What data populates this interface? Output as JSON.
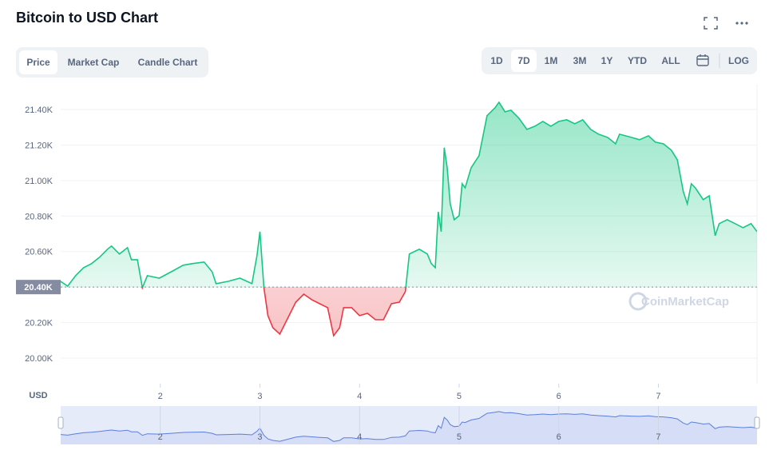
{
  "ui": {
    "title": "Bitcoin to USD Chart",
    "tabs": [
      "Price",
      "Market Cap",
      "Candle Chart"
    ],
    "ranges": [
      "1D",
      "7D",
      "1M",
      "3M",
      "1Y",
      "YTD",
      "ALL"
    ],
    "log": "LOG",
    "watermark": "CoinMarketCap"
  },
  "chart_data": {
    "type": "line",
    "y_label": "USD",
    "color": "#16c784",
    "down_color": "#ea3943",
    "baseline": {
      "value": 20400,
      "label": "20.40K"
    },
    "xlim": [
      1,
      7.99
    ],
    "xticks": [
      2,
      3,
      4,
      5,
      6,
      7
    ],
    "ylim": [
      19856,
      21544
    ],
    "yticks": [
      {
        "value": 20000,
        "label": "20.00K"
      },
      {
        "value": 20200,
        "label": "20.20K"
      },
      {
        "value": 20400,
        "label": "20.40K"
      },
      {
        "value": 20600,
        "label": "20.60K"
      },
      {
        "value": 20800,
        "label": "20.80K"
      },
      {
        "value": 21000,
        "label": "21.00K"
      },
      {
        "value": 21200,
        "label": "21.20K"
      },
      {
        "value": 21400,
        "label": "21.40K"
      }
    ],
    "grid": true,
    "x": [
      1.0,
      1.07,
      1.15,
      1.23,
      1.31,
      1.39,
      1.47,
      1.51,
      1.59,
      1.67,
      1.71,
      1.77,
      1.82,
      1.87,
      1.99,
      2.11,
      2.23,
      2.32,
      2.44,
      2.52,
      2.56,
      2.68,
      2.8,
      2.92,
      2.97,
      3.0,
      3.04,
      3.08,
      3.13,
      3.2,
      3.28,
      3.36,
      3.44,
      3.52,
      3.6,
      3.68,
      3.74,
      3.8,
      3.84,
      3.92,
      4.0,
      4.08,
      4.16,
      4.24,
      4.32,
      4.4,
      4.46,
      4.5,
      4.6,
      4.68,
      4.72,
      4.76,
      4.79,
      4.82,
      4.85,
      4.88,
      4.91,
      4.95,
      5.0,
      5.03,
      5.06,
      5.12,
      5.2,
      5.24,
      5.28,
      5.36,
      5.4,
      5.46,
      5.52,
      5.6,
      5.68,
      5.76,
      5.84,
      5.92,
      6.0,
      6.08,
      6.16,
      6.24,
      6.32,
      6.4,
      6.49,
      6.57,
      6.61,
      6.73,
      6.81,
      6.9,
      6.97,
      7.05,
      7.13,
      7.19,
      7.25,
      7.29,
      7.33,
      7.37,
      7.45,
      7.51,
      7.57,
      7.61,
      7.69,
      7.77,
      7.85,
      7.93,
      7.99
    ],
    "values": [
      20432,
      20405,
      20464,
      20509,
      20532,
      20568,
      20613,
      20631,
      20586,
      20622,
      20554,
      20554,
      20396,
      20464,
      20450,
      20486,
      20523,
      20532,
      20541,
      20486,
      20419,
      20432,
      20450,
      20419,
      20577,
      20712,
      20396,
      20239,
      20171,
      20135,
      20225,
      20315,
      20360,
      20329,
      20306,
      20284,
      20126,
      20171,
      20284,
      20284,
      20239,
      20252,
      20216,
      20216,
      20306,
      20315,
      20374,
      20586,
      20613,
      20586,
      20532,
      20509,
      20824,
      20712,
      21185,
      21072,
      20869,
      20779,
      20802,
      20982,
      20959,
      21072,
      21140,
      21252,
      21365,
      21410,
      21441,
      21387,
      21396,
      21351,
      21288,
      21306,
      21333,
      21306,
      21333,
      21342,
      21320,
      21342,
      21288,
      21261,
      21243,
      21207,
      21261,
      21243,
      21230,
      21252,
      21216,
      21207,
      21171,
      21117,
      20937,
      20869,
      20982,
      20959,
      20892,
      20914,
      20689,
      20757,
      20779,
      20757,
      20734,
      20757,
      20712
    ]
  }
}
